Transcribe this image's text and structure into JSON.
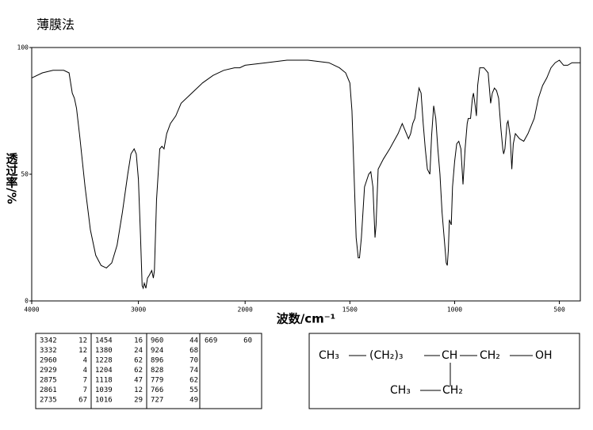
{
  "chart_data": {
    "type": "line",
    "title": "薄膜法",
    "xlabel": "波数/cm⁻¹",
    "ylabel": "透过率/%",
    "x": [
      4000,
      3900,
      3800,
      3700,
      3650,
      3620,
      3600,
      3580,
      3550,
      3500,
      3450,
      3400,
      3350,
      3300,
      3250,
      3200,
      3150,
      3100,
      3070,
      3040,
      3020,
      3000,
      2980,
      2965,
      2955,
      2945,
      2930,
      2915,
      2900,
      2875,
      2860,
      2850,
      2830,
      2800,
      2780,
      2760,
      2735,
      2700,
      2650,
      2600,
      2500,
      2400,
      2300,
      2200,
      2100,
      2050,
      2000,
      1900,
      1800,
      1700,
      1600,
      1550,
      1520,
      1500,
      1490,
      1480,
      1470,
      1460,
      1454,
      1445,
      1430,
      1410,
      1400,
      1390,
      1380,
      1375,
      1365,
      1340,
      1310,
      1290,
      1270,
      1250,
      1235,
      1220,
      1210,
      1200,
      1190,
      1180,
      1170,
      1160,
      1150,
      1140,
      1130,
      1118,
      1110,
      1100,
      1090,
      1080,
      1070,
      1060,
      1050,
      1040,
      1035,
      1030,
      1025,
      1016,
      1010,
      1000,
      990,
      980,
      970,
      960,
      950,
      940,
      935,
      924,
      915,
      910,
      900,
      896,
      890,
      880,
      860,
      840,
      828,
      820,
      810,
      800,
      790,
      779,
      770,
      766,
      760,
      750,
      745,
      735,
      727,
      720,
      710,
      690,
      670,
      650,
      620,
      600,
      580,
      560,
      540,
      520,
      500,
      480,
      460,
      440,
      400
    ],
    "values": [
      88,
      90,
      91,
      91,
      90,
      82,
      80,
      76,
      65,
      45,
      28,
      18,
      14,
      13,
      15,
      22,
      35,
      50,
      58,
      60,
      58,
      48,
      25,
      6,
      5,
      7,
      5,
      9,
      10,
      12,
      9,
      12,
      40,
      60,
      61,
      60,
      66,
      70,
      73,
      78,
      82,
      86,
      89,
      91,
      92,
      92,
      93,
      94,
      95,
      95,
      94,
      92,
      90,
      86,
      75,
      50,
      25,
      17,
      17,
      25,
      45,
      50,
      51,
      45,
      25,
      30,
      52,
      56,
      60,
      63,
      66,
      70,
      67,
      64,
      66,
      70,
      72,
      78,
      84,
      82,
      70,
      60,
      52,
      50,
      65,
      77,
      72,
      60,
      50,
      35,
      25,
      15,
      14,
      20,
      32,
      30,
      45,
      55,
      62,
      63,
      60,
      46,
      60,
      70,
      72,
      72,
      80,
      82,
      76,
      73,
      85,
      92,
      92,
      90,
      78,
      82,
      84,
      83,
      80,
      68,
      60,
      58,
      60,
      70,
      71,
      65,
      52,
      62,
      66,
      64,
      63,
      66,
      72,
      80,
      85,
      88,
      92,
      94,
      95,
      93,
      93,
      94,
      94
    ],
    "color": "#000000",
    "xlim": [
      4000,
      400
    ],
    "ylim": [
      0,
      100
    ],
    "xticks": [
      4000,
      3000,
      2000,
      1500,
      1000,
      500
    ],
    "yticks": [
      0,
      50,
      100
    ],
    "x_scale_break": 2000
  },
  "peak_table": {
    "columns": [
      [
        [
          3342,
          12
        ],
        [
          3332,
          12
        ],
        [
          2960,
          4
        ],
        [
          2929,
          4
        ],
        [
          2875,
          7
        ],
        [
          2861,
          7
        ],
        [
          2735,
          67
        ]
      ],
      [
        [
          1454,
          16
        ],
        [
          1380,
          24
        ],
        [
          1228,
          62
        ],
        [
          1204,
          62
        ],
        [
          1118,
          47
        ],
        [
          1039,
          12
        ],
        [
          1016,
          29
        ]
      ],
      [
        [
          960,
          44
        ],
        [
          924,
          68
        ],
        [
          896,
          70
        ],
        [
          828,
          74
        ],
        [
          779,
          62
        ],
        [
          766,
          55
        ],
        [
          727,
          49
        ]
      ],
      [
        [
          669,
          60
        ]
      ]
    ]
  },
  "structure": {
    "main": [
      "CH₃",
      "(CH₂)₃",
      "CH",
      "CH₂",
      "OH"
    ],
    "branch": [
      "CH₃",
      "CH₂"
    ]
  }
}
